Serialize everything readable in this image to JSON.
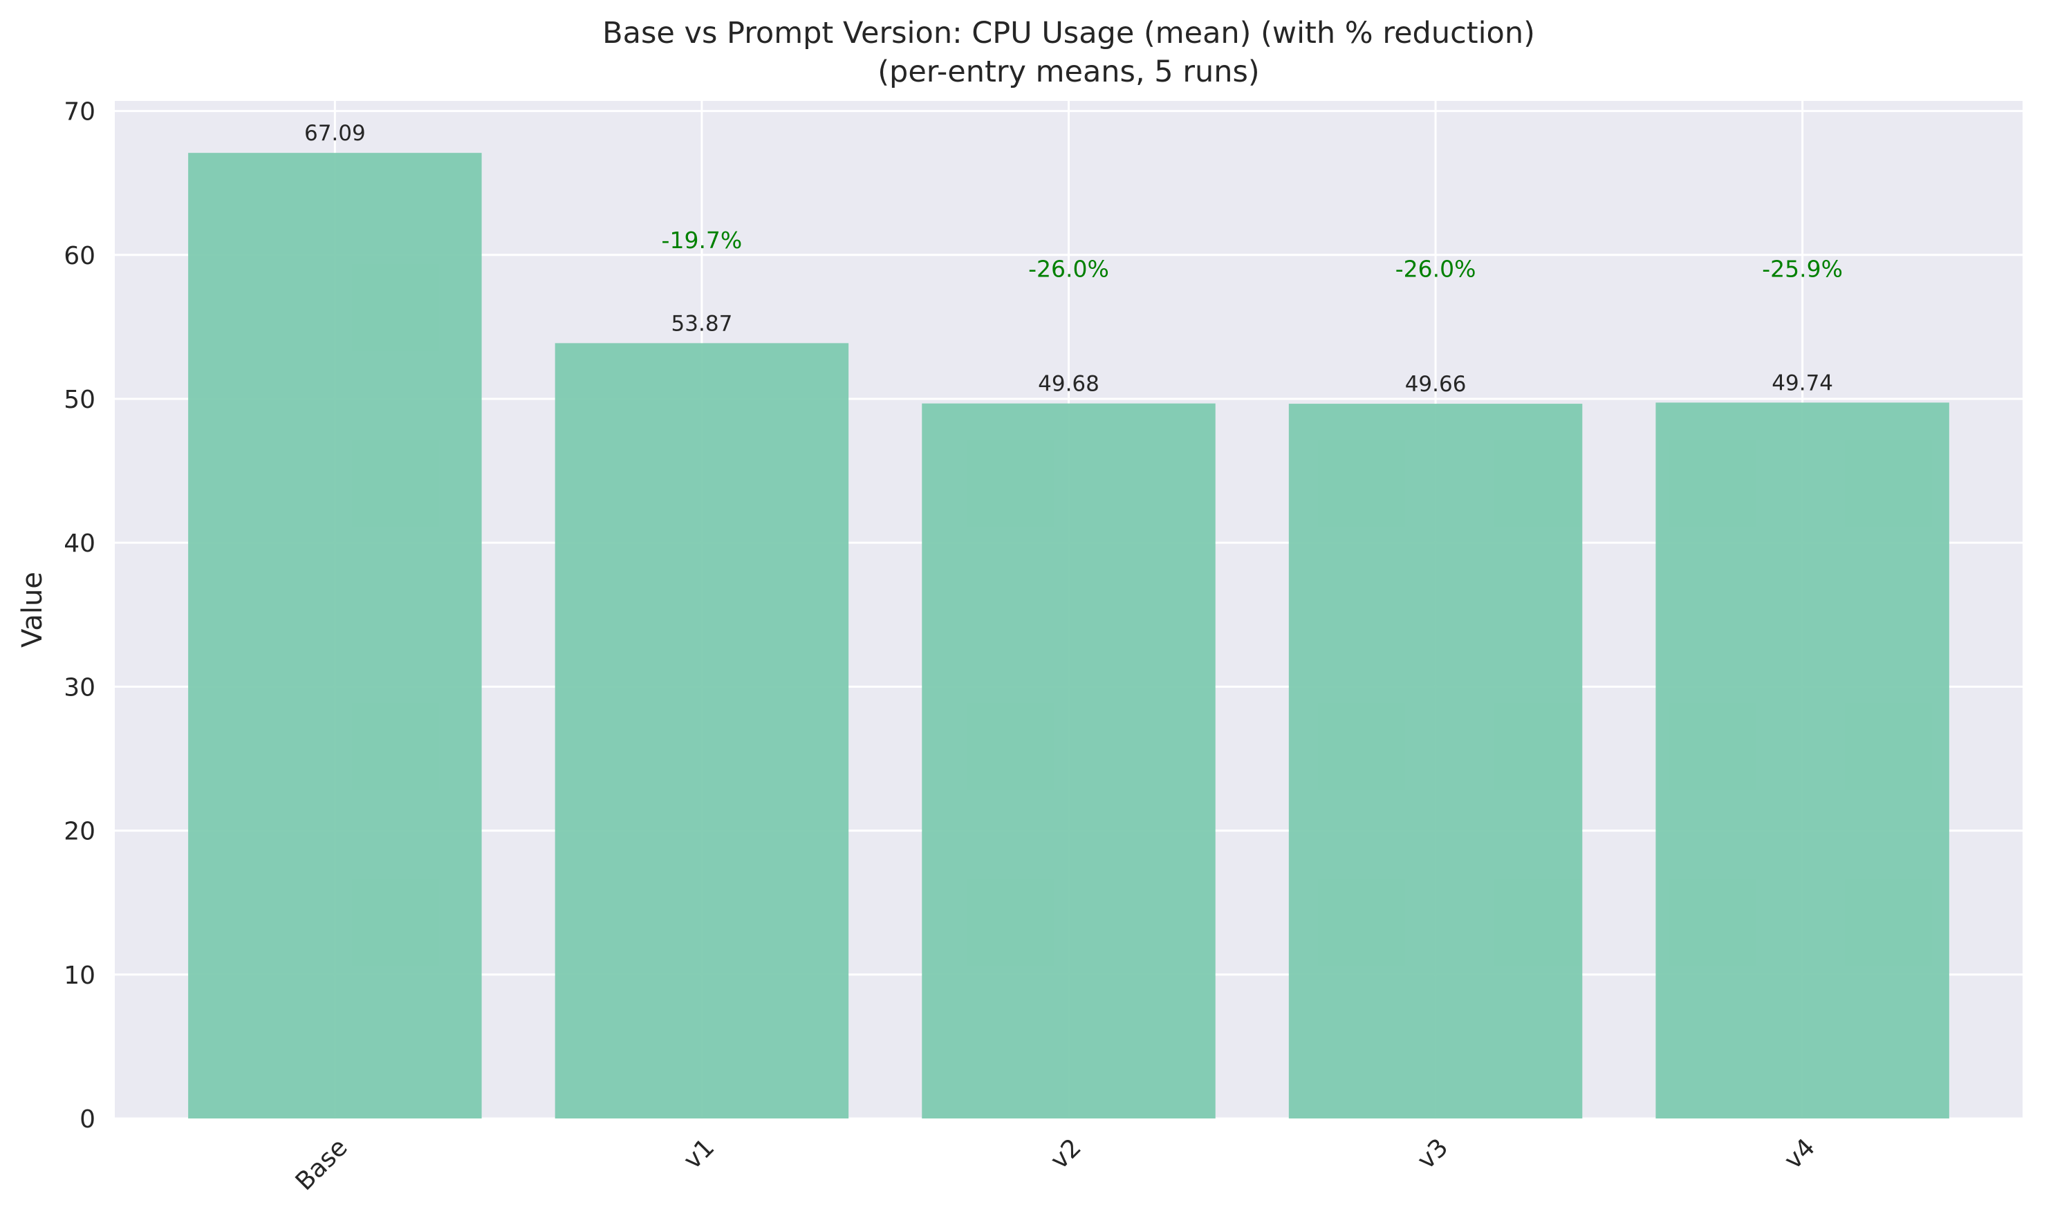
{
  "chart_data": {
    "type": "bar",
    "title": "Base vs Prompt Version: CPU Usage (mean) (with % reduction)",
    "subtitle": "(per-entry means, 5 runs)",
    "xlabel": "",
    "ylabel": "Value",
    "ylim": [
      0,
      70
    ],
    "yticks": [
      0,
      10,
      20,
      30,
      40,
      50,
      60,
      70
    ],
    "ytick_labels": [
      "0",
      "10",
      "20",
      "30",
      "40",
      "50",
      "60",
      "70"
    ],
    "grid": true,
    "categories": [
      "Base",
      "v1",
      "v2",
      "v3",
      "v4"
    ],
    "values": [
      67.09,
      53.87,
      49.68,
      49.66,
      49.74
    ],
    "value_labels": [
      "67.09",
      "53.87",
      "49.68",
      "49.66",
      "49.74"
    ],
    "reductions": [
      "",
      "-19.7%",
      "-26.0%",
      "-26.0%",
      "-25.9%"
    ],
    "reduction_label_y": [
      null,
      61.0,
      59.0,
      59.0,
      59.0
    ],
    "colors": {
      "bar": "#7ecab0",
      "background": "#eaeaf2",
      "grid": "#ffffff",
      "reduction_text": "#008000",
      "text": "#262626"
    }
  }
}
